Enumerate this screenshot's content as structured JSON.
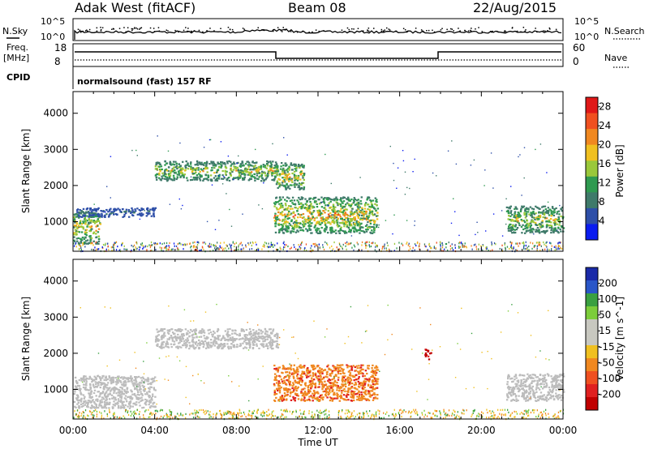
{
  "header": {
    "station": "Adak West (fitACF)",
    "beam": "Beam 08",
    "date": "22/Aug/2015"
  },
  "top_panels": {
    "nsky_label": "N.Sky",
    "nsky_ticks": [
      "10^5",
      "10^0"
    ],
    "nsearch_label": "N.Search",
    "nsearch_ticks": [
      "10^5",
      "10^0"
    ],
    "freq_label": "Freq.",
    "freq_unit": "[MHz]",
    "freq_ticks": [
      "18",
      "8"
    ],
    "nave_label": "Nave",
    "nave_ticks": [
      "60",
      "0"
    ],
    "cpid_label": "CPID",
    "cpid_value": "normalsound (fast) 157 RF"
  },
  "colors": {
    "power_scale": [
      "#0a1cf0",
      "#2e4fa8",
      "#3f7a6a",
      "#2f9a50",
      "#9ac83a",
      "#f0c020",
      "#f08820",
      "#f05020",
      "#e01818"
    ],
    "velocity_scale": [
      "#1a2aa8",
      "#2a56c8",
      "#3aa040",
      "#7ccd3a",
      "#c8c8c0",
      "#f0c020",
      "#f08820",
      "#f05020",
      "#e02020",
      "#c00000"
    ],
    "ground_scatter": "#bcbcbc"
  },
  "chart_data": [
    {
      "type": "heatmap",
      "title": "Power",
      "ylabel": "Slant Range [km]",
      "ylim": [
        180,
        4600
      ],
      "xlim": [
        "00:00",
        "24:00"
      ],
      "y_ticks": [
        "1000",
        "2000",
        "3000",
        "4000"
      ],
      "colorbar": {
        "label": "Power [dB]",
        "ticks": [
          "4",
          "8",
          "12",
          "16",
          "20",
          "24",
          "28"
        ],
        "range": [
          0,
          30
        ]
      },
      "echo_regions": [
        {
          "name": "early-evening low range",
          "t_start": 0.0,
          "t_end": 1.3,
          "r_min": 400,
          "r_max": 1300,
          "peak_db": 24
        },
        {
          "name": "band near 1200 km",
          "t_start": 0.1,
          "t_end": 4.0,
          "r_min": 1150,
          "r_max": 1400,
          "peak_db": 10
        },
        {
          "name": "band near 2300 km",
          "t_start": 4.0,
          "t_end": 10.0,
          "r_min": 2150,
          "r_max": 2700,
          "peak_db": 22
        },
        {
          "name": "spur near 2000 km",
          "t_start": 9.9,
          "t_end": 11.3,
          "r_min": 1900,
          "r_max": 2650,
          "peak_db": 24
        },
        {
          "name": "main patch",
          "t_start": 9.8,
          "t_end": 14.9,
          "r_min": 700,
          "r_max": 1700,
          "peak_db": 26
        },
        {
          "name": "late patch",
          "t_start": 21.2,
          "t_end": 24.0,
          "r_min": 700,
          "r_max": 1450,
          "peak_db": 22
        }
      ]
    },
    {
      "type": "heatmap",
      "title": "Velocity",
      "ylabel": "Slant Range [km]",
      "xlabel": "Time UT",
      "ylim": [
        180,
        4600
      ],
      "xlim": [
        "00:00",
        "24:00"
      ],
      "x_ticks": [
        "00:00",
        "04:00",
        "08:00",
        "12:00",
        "16:00",
        "20:00",
        "00:00"
      ],
      "y_ticks": [
        "1000",
        "2000",
        "3000",
        "4000"
      ],
      "colorbar": {
        "label": "Velocity [m s^-1]",
        "ticks": [
          "200",
          "100",
          "50",
          "15",
          "-15",
          "-50",
          "-100",
          "-200"
        ],
        "range": [
          -250,
          250
        ]
      },
      "echo_regions": [
        {
          "name": "ground scatter early",
          "t_start": 0.0,
          "t_end": 4.0,
          "r_min": 500,
          "r_max": 1400,
          "velocity": 0
        },
        {
          "name": "ground scatter 2300 km",
          "t_start": 4.0,
          "t_end": 10.0,
          "r_min": 2150,
          "r_max": 2700,
          "velocity": 0
        },
        {
          "name": "main patch",
          "t_start": 9.8,
          "t_end": 14.9,
          "r_min": 700,
          "r_max": 1700,
          "velocity": -60
        },
        {
          "name": "small patch",
          "t_start": 17.2,
          "t_end": 17.5,
          "r_min": 1850,
          "r_max": 2150,
          "velocity": -180
        },
        {
          "name": "ground scatter late",
          "t_start": 21.2,
          "t_end": 24.0,
          "r_min": 700,
          "r_max": 1450,
          "velocity": 0
        }
      ]
    }
  ],
  "footer": {
    "x_ticks": [
      "00:00",
      "04:00",
      "08:00",
      "12:00",
      "16:00",
      "20:00",
      "00:00"
    ],
    "xlabel": "Time UT"
  }
}
